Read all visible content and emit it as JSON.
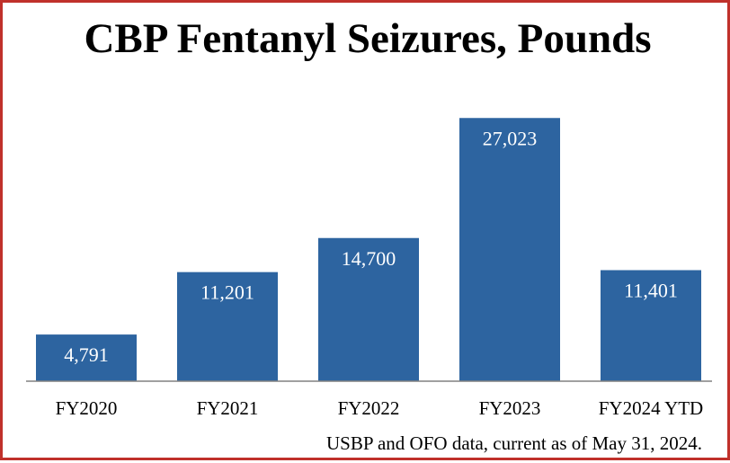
{
  "chart_data": {
    "type": "bar",
    "title": "CBP Fentanyl Seizures, Pounds",
    "categories": [
      "FY2020",
      "FY2021",
      "FY2022",
      "FY2023",
      "FY2024 YTD"
    ],
    "values": [
      4791,
      11201,
      14700,
      27023,
      11401
    ],
    "value_labels": [
      "4,791",
      "11,201",
      "14,700",
      "27,023",
      "11,401"
    ],
    "ylim": [
      0,
      30000
    ],
    "grid": false,
    "legend": "none",
    "bar_color": "#2d64a0",
    "label_color": "#ffffff",
    "note": "USBP and OFO data, current as of May 31, 2024."
  },
  "colors": {
    "border": "#c0312b",
    "axis": "#808080",
    "background": "#ffffff"
  }
}
